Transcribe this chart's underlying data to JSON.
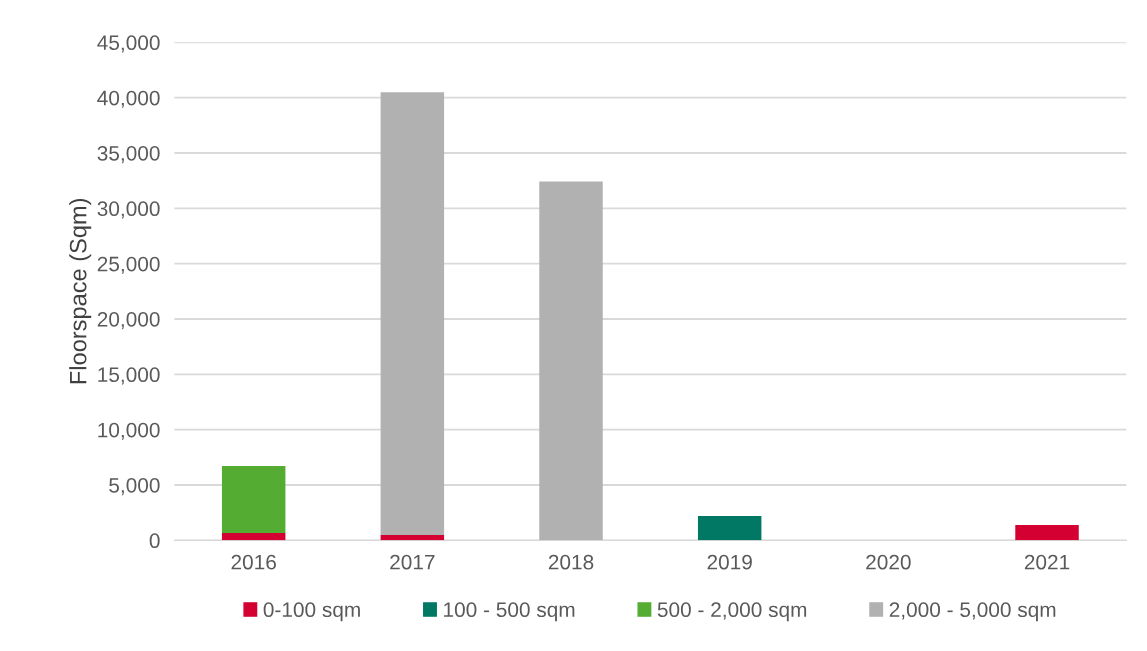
{
  "chart_data": {
    "type": "bar",
    "stacked": true,
    "ylabel": "Floorspace (Sqm)",
    "categories": [
      "2016",
      "2017",
      "2018",
      "2019",
      "2020",
      "2021"
    ],
    "series": [
      {
        "name": "0-100 sqm",
        "color": "#d50032",
        "values": [
          660,
          480,
          0,
          0,
          0,
          1380
        ]
      },
      {
        "name": "100 - 500 sqm",
        "color": "#007864",
        "values": [
          0,
          0,
          0,
          2200,
          0,
          0
        ]
      },
      {
        "name": "500 - 2,000 sqm",
        "color": "#54ad32",
        "values": [
          6060,
          0,
          0,
          0,
          0,
          0
        ]
      },
      {
        "name": "2,000 - 5,000 sqm",
        "color": "#b1b1b1",
        "values": [
          0,
          40000,
          32430,
          0,
          0,
          0
        ]
      }
    ],
    "ylim": [
      0,
      45000
    ],
    "yticks": [
      {
        "value": 0,
        "label": "0"
      },
      {
        "value": 5000,
        "label": "5,000"
      },
      {
        "value": 10000,
        "label": "10,000"
      },
      {
        "value": 15000,
        "label": "15,000"
      },
      {
        "value": 20000,
        "label": "20,000"
      },
      {
        "value": 25000,
        "label": "25,000"
      },
      {
        "value": 30000,
        "label": "30,000"
      },
      {
        "value": 35000,
        "label": "35,000"
      },
      {
        "value": 40000,
        "label": "40,000"
      },
      {
        "value": 45000,
        "label": "45,000"
      }
    ],
    "grid": "y",
    "legend": "bottom"
  }
}
